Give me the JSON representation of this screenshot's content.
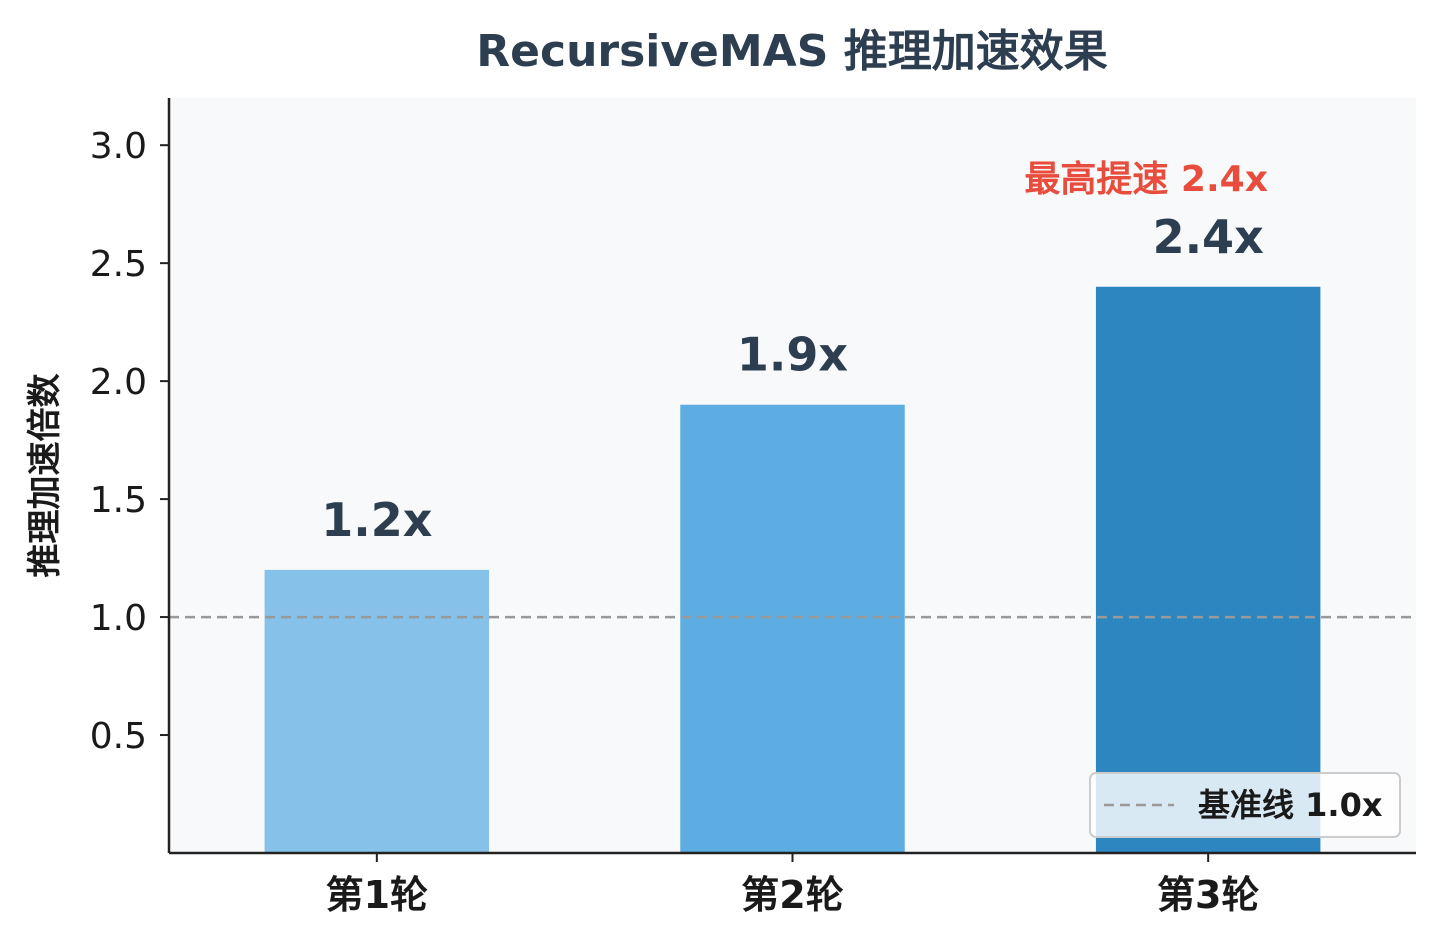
{
  "chart_data": {
    "type": "bar",
    "title": "RecursiveMAS 推理加速效果",
    "ylabel": "推理加速倍数",
    "xlabel": "",
    "categories": [
      "第1轮",
      "第2轮",
      "第3轮"
    ],
    "values": [
      1.2,
      1.9,
      2.4
    ],
    "value_labels": [
      "1.2x",
      "1.9x",
      "2.4x"
    ],
    "bar_colors": [
      "#85c1e9",
      "#5dade2",
      "#2e86c1"
    ],
    "ylim": [
      0,
      3.2
    ],
    "yticks": [
      0.5,
      1.0,
      1.5,
      2.0,
      2.5,
      3.0
    ],
    "ytick_labels": [
      "0.5",
      "1.0",
      "1.5",
      "2.0",
      "2.5",
      "3.0"
    ],
    "baseline": {
      "value": 1.0,
      "label": "基准线 1.0x",
      "color": "#999999"
    },
    "annotation": {
      "text": "最高提速 2.4x",
      "category_index": 2,
      "color": "#e74c3c"
    },
    "legend_position": "lower-right",
    "grid": false,
    "plot_background": "#f8f9fa"
  }
}
